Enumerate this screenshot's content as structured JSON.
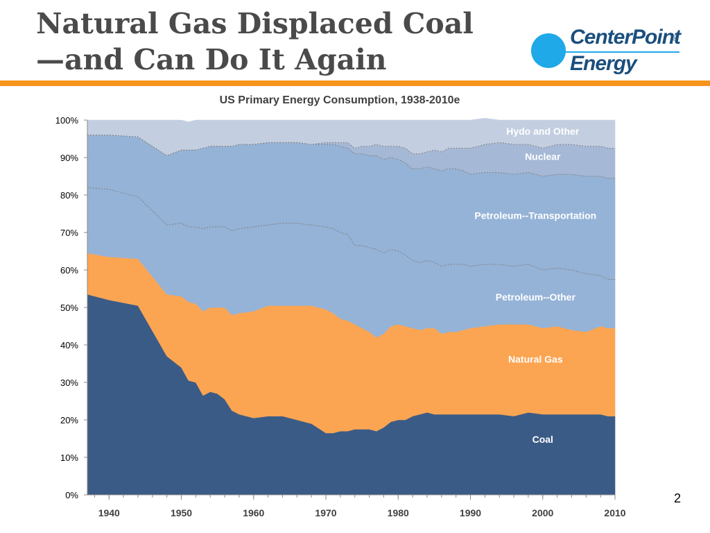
{
  "slide": {
    "title_line1": "Natural Gas Displaced Coal",
    "title_line2": "—and Can Do It Again",
    "page_number": "2"
  },
  "logo": {
    "line1": "CenterPoint",
    "line2": "Energy",
    "registered": "®"
  },
  "colors": {
    "coal": "#3b5b87",
    "natural_gas": "#fba552",
    "petroleum_other": "#95b3d7",
    "petroleum_transport": "#95b3d7",
    "nuclear": "#a5b8d6",
    "hydro_other": "#c3cfe1",
    "accent": "#f7941d",
    "logo_blue": "#1fa9e8"
  },
  "chart_data": {
    "type": "area",
    "stacked": true,
    "percent": true,
    "title": "US Primary Energy Consumption, 1938-2010e",
    "xlabel": "",
    "ylabel": "",
    "xlim": [
      1937,
      2010
    ],
    "ylim": [
      0,
      100
    ],
    "x_ticks": [
      1940,
      1950,
      1960,
      1970,
      1980,
      1990,
      2000,
      2010
    ],
    "y_ticks": [
      "0%",
      "10%",
      "20%",
      "30%",
      "40%",
      "50%",
      "60%",
      "70%",
      "80%",
      "90%",
      "100%"
    ],
    "x": [
      1937,
      1940,
      1944,
      1948,
      1950,
      1951,
      1952,
      1953,
      1954,
      1955,
      1956,
      1957,
      1958,
      1960,
      1962,
      1964,
      1966,
      1968,
      1970,
      1971,
      1972,
      1973,
      1974,
      1975,
      1976,
      1977,
      1978,
      1979,
      1980,
      1981,
      1982,
      1983,
      1984,
      1985,
      1986,
      1987,
      1988,
      1989,
      1990,
      1992,
      1994,
      1996,
      1998,
      2000,
      2002,
      2004,
      2006,
      2008,
      2009,
      2010
    ],
    "series": [
      {
        "name": "Coal",
        "color_key": "coal",
        "values": [
          53.5,
          52,
          50.5,
          37,
          34,
          30.5,
          30,
          26.5,
          27.5,
          27,
          25.5,
          22.5,
          21.5,
          20.5,
          21,
          21,
          20,
          19,
          16.5,
          16.5,
          17,
          17,
          17.5,
          17.5,
          17.5,
          17,
          18,
          19.5,
          20,
          20,
          21,
          21.5,
          22,
          21.5,
          21.5,
          21.5,
          21.5,
          21.5,
          21.5,
          21.5,
          21.5,
          21,
          22,
          21.5,
          21.5,
          21.5,
          21.5,
          21.5,
          21,
          21
        ]
      },
      {
        "name": "Natural Gas",
        "color_key": "natural_gas",
        "values": [
          11,
          11.5,
          12.5,
          16.5,
          19,
          21,
          21,
          22.5,
          22.5,
          23,
          24.5,
          25.5,
          27,
          28.5,
          29.5,
          29.5,
          30.5,
          31.5,
          33,
          32,
          30,
          29.5,
          28,
          27,
          26,
          25,
          25,
          25.5,
          25.5,
          25,
          23.5,
          22.5,
          22.5,
          23,
          21.5,
          22,
          22,
          22.5,
          23,
          23.5,
          24,
          24.5,
          23.5,
          23,
          23.5,
          22.5,
          22,
          23.5,
          23.5,
          23.5
        ]
      },
      {
        "name": "Petroleum--Other",
        "color_key": "petroleum_other",
        "values": [
          17.5,
          18,
          16.5,
          18.5,
          19.5,
          20,
          20.5,
          22,
          21.5,
          21.5,
          21.5,
          22.5,
          22.5,
          22.5,
          21.5,
          22,
          22,
          21.5,
          22,
          22.5,
          23,
          23,
          21,
          22,
          22.5,
          23.5,
          21.5,
          20.5,
          19.5,
          19,
          18,
          18,
          18,
          17.5,
          18,
          18,
          18,
          17.5,
          16.5,
          16.5,
          16,
          15.5,
          16,
          15.5,
          15.5,
          16,
          15.5,
          13.5,
          13,
          13
        ]
      },
      {
        "name": "Petroleum--Transportation",
        "color_key": "petroleum_transport",
        "values": [
          14,
          14.5,
          16,
          18.5,
          19.5,
          20.5,
          20.5,
          21.5,
          21.5,
          21.5,
          21.5,
          22.5,
          22.5,
          22,
          22,
          21.5,
          21.5,
          21.5,
          22,
          22.5,
          23,
          23,
          24.5,
          24.5,
          24.5,
          25,
          25,
          24.5,
          24.5,
          24.5,
          24.5,
          25,
          25,
          25,
          25.5,
          25.5,
          25.5,
          25,
          24.5,
          24.5,
          24.5,
          24.5,
          24.5,
          25,
          25,
          25.5,
          26,
          26.5,
          27,
          27
        ]
      },
      {
        "name": "Nuclear",
        "color_key": "nuclear",
        "values": [
          0,
          0,
          0,
          0,
          0,
          0,
          0,
          0,
          0,
          0,
          0,
          0,
          0,
          0,
          0,
          0,
          0,
          0,
          0.5,
          0.5,
          1,
          1.5,
          1.5,
          2,
          2.5,
          3,
          3.5,
          3,
          3.5,
          4,
          4,
          4,
          4,
          5,
          5,
          5.5,
          5.5,
          6,
          7,
          7.5,
          8,
          8,
          7.5,
          7.5,
          8,
          8,
          8,
          8,
          8,
          8
        ]
      },
      {
        "name": "Hydo and Other",
        "color_key": "hydro_other",
        "values": [
          4,
          4,
          4.5,
          9.5,
          8,
          7.5,
          8,
          7.5,
          7,
          7,
          7,
          7,
          6.5,
          6.5,
          6,
          6,
          6,
          6.5,
          6,
          6,
          6,
          6,
          7.5,
          7,
          7,
          6.5,
          7,
          7,
          7,
          7.5,
          9,
          9,
          8.5,
          8,
          8.5,
          7.5,
          7.5,
          7.5,
          7.5,
          7,
          6,
          6.5,
          6.5,
          7.5,
          6.5,
          6.5,
          7,
          7,
          7.5,
          7.5
        ]
      }
    ],
    "annotations": [
      {
        "text": "Hydo and Other",
        "x": 2000,
        "y": 97
      },
      {
        "text": "Nuclear",
        "x": 2000,
        "y": 90.3
      },
      {
        "text": "Petroleum--Transportation",
        "x": 1999,
        "y": 74.5
      },
      {
        "text": "Petroleum--Other",
        "x": 1999,
        "y": 52.8
      },
      {
        "text": "Natural Gas",
        "x": 1999,
        "y": 36.2
      },
      {
        "text": "Coal",
        "x": 2000,
        "y": 14.8
      }
    ],
    "dividers_shown_between": [
      "Petroleum--Other",
      "Petroleum--Transportation"
    ],
    "grid": false,
    "legend": "none"
  }
}
